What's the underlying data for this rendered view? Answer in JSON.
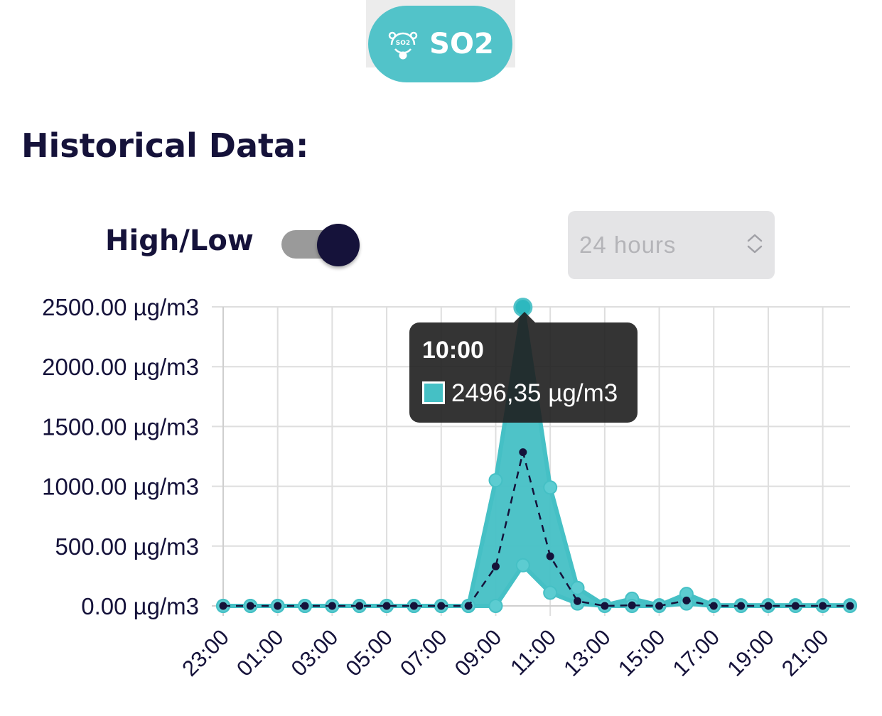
{
  "header": {
    "pollutant_label": "SO2",
    "pollutant_icon": "so2-molecule-icon",
    "icon_text": "SO2",
    "accent_color": "#52c3c9"
  },
  "section": {
    "title": "Historical Data:"
  },
  "controls": {
    "toggle_label": "High/Low",
    "toggle_on": true,
    "range_value": "24 hours",
    "range_icon": "up-down-chevron-icon"
  },
  "tooltip": {
    "title": "10:00",
    "value": "2496,35 µg/m3"
  },
  "chart_data": {
    "type": "area",
    "title": "",
    "xlabel": "",
    "ylabel": "",
    "x": [
      "23:00",
      "00:00",
      "01:00",
      "02:00",
      "03:00",
      "04:00",
      "05:00",
      "06:00",
      "07:00",
      "08:00",
      "09:00",
      "10:00",
      "11:00",
      "12:00",
      "13:00",
      "14:00",
      "15:00",
      "16:00",
      "17:00",
      "18:00",
      "19:00",
      "20:00",
      "21:00",
      "22:00"
    ],
    "x_tick_labels": [
      "23:00",
      "",
      "01:00",
      "",
      "03:00",
      "",
      "05:00",
      "",
      "07:00",
      "",
      "09:00",
      "",
      "11:00",
      "",
      "13:00",
      "",
      "15:00",
      "",
      "17:00",
      "",
      "19:00",
      "",
      "21:00",
      ""
    ],
    "y_tick_labels": [
      "0.00 µg/m3",
      "500.00 µg/m3",
      "1000.00 µg/m3",
      "1500.00 µg/m3",
      "2000.00 µg/m3",
      "2500.00 µg/m3"
    ],
    "y_ticks": [
      0,
      500,
      1000,
      1500,
      2000,
      2500
    ],
    "ylim": [
      0,
      2500
    ],
    "grid": true,
    "highlight_index": 11,
    "series": [
      {
        "role": "high",
        "color": "#45c0c5",
        "values": [
          0,
          0,
          0,
          0,
          0,
          0,
          0,
          0,
          0,
          0,
          1050,
          2496.35,
          990,
          150,
          5,
          60,
          5,
          100,
          5,
          5,
          5,
          5,
          5,
          5
        ]
      },
      {
        "role": "low",
        "color": "#45c0c5",
        "values": [
          0,
          0,
          0,
          0,
          0,
          0,
          0,
          0,
          0,
          0,
          0,
          340,
          110,
          20,
          0,
          0,
          0,
          20,
          0,
          0,
          0,
          0,
          0,
          0
        ]
      },
      {
        "role": "average",
        "color": "#15123a",
        "values": [
          0,
          0,
          0,
          0,
          0,
          0,
          0,
          0,
          0,
          0,
          330,
          1285,
          415,
          40,
          0,
          5,
          0,
          45,
          0,
          0,
          0,
          0,
          0,
          0
        ]
      }
    ]
  }
}
